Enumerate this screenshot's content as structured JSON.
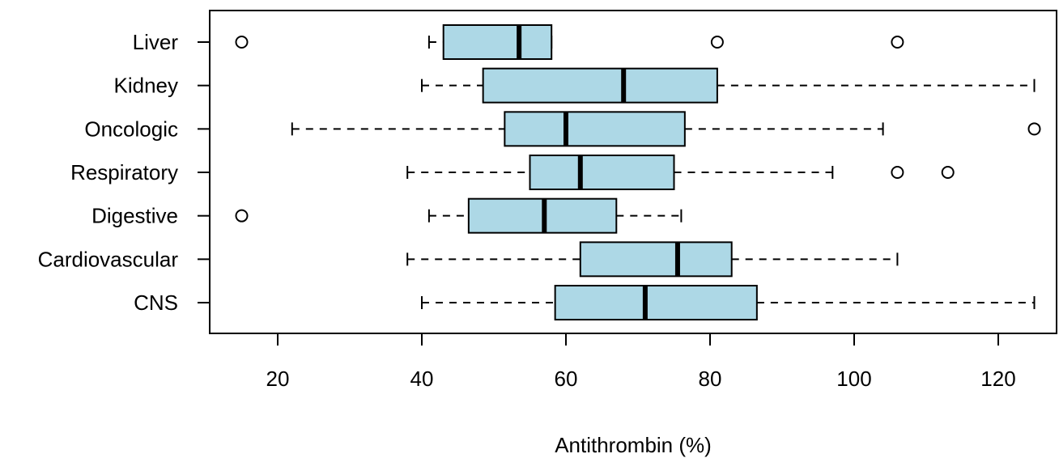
{
  "chart_data": {
    "type": "boxplot",
    "orientation": "horizontal",
    "xlabel": "Antithrombin (%)",
    "ylabel": "",
    "title": "",
    "xlim": [
      10,
      127.5
    ],
    "xticks": [
      20,
      40,
      60,
      80,
      100,
      120
    ],
    "grid": false,
    "box_color": "#ADD8E6",
    "categories": [
      "Liver",
      "Kidney",
      "Oncologic",
      "Respiratory",
      "Digestive",
      "Cardiovascular",
      "CNS"
    ],
    "boxes": [
      {
        "name": "Liver",
        "whisker_low": 41,
        "q1": 43,
        "median": 53.5,
        "q3": 58,
        "whisker_high": 58,
        "outliers": [
          15,
          81,
          106
        ]
      },
      {
        "name": "Kidney",
        "whisker_low": 40,
        "q1": 48.5,
        "median": 68,
        "q3": 81,
        "whisker_high": 125,
        "outliers": []
      },
      {
        "name": "Oncologic",
        "whisker_low": 22,
        "q1": 51.5,
        "median": 60,
        "q3": 76.5,
        "whisker_high": 104,
        "outliers": [
          125
        ]
      },
      {
        "name": "Respiratory",
        "whisker_low": 38,
        "q1": 55,
        "median": 62,
        "q3": 75,
        "whisker_high": 97,
        "outliers": [
          106,
          113
        ]
      },
      {
        "name": "Digestive",
        "whisker_low": 41,
        "q1": 46.5,
        "median": 57,
        "q3": 67,
        "whisker_high": 76,
        "outliers": [
          15
        ]
      },
      {
        "name": "Cardiovascular",
        "whisker_low": 38,
        "q1": 62,
        "median": 75.5,
        "q3": 83,
        "whisker_high": 106,
        "outliers": []
      },
      {
        "name": "CNS",
        "whisker_low": 40,
        "q1": 58.5,
        "median": 71,
        "q3": 86.5,
        "whisker_high": 125,
        "outliers": []
      }
    ]
  }
}
